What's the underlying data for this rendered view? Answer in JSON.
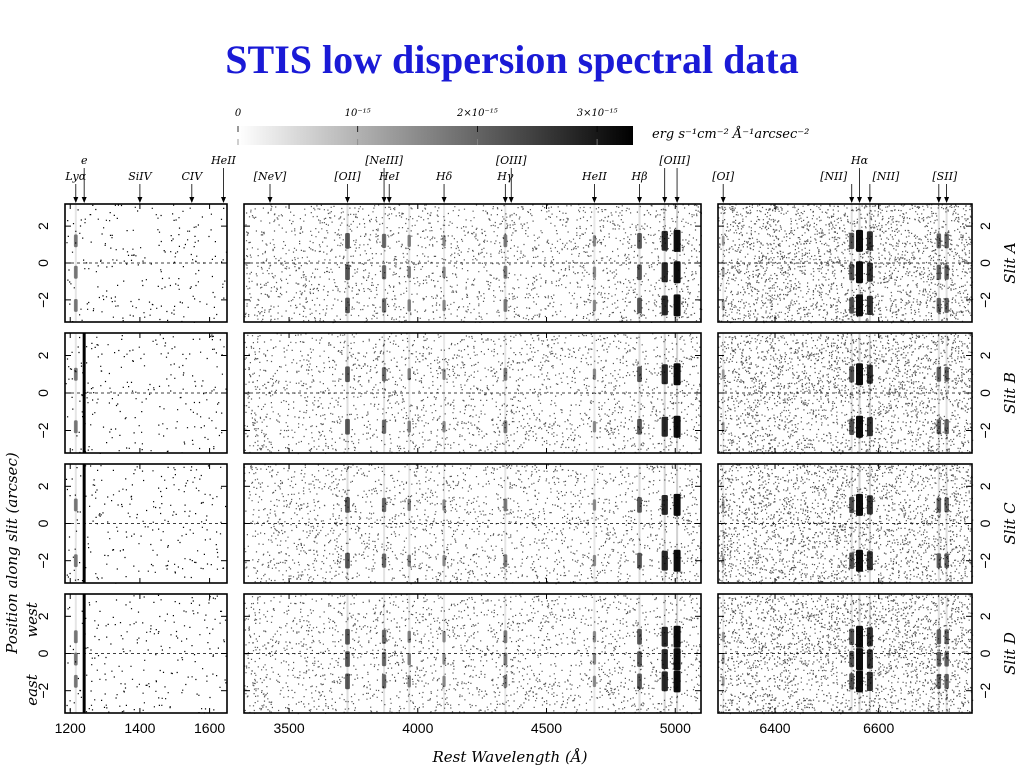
{
  "title": "STIS low dispersion spectral data",
  "chart_data": {
    "type": "heatmap",
    "title": "",
    "xlabel": "Rest Wavelength (Å)",
    "ylabel": "Position along slit (arcsec)",
    "orientation_labels": {
      "top": "west",
      "bottom": "east"
    },
    "colorbar": {
      "unit": "erg s⁻¹cm⁻² Å⁻¹arcsec⁻²",
      "ticks": [
        "0",
        "10⁻¹⁵",
        "2×10⁻¹⁵",
        "3×10⁻¹⁵"
      ],
      "tick_values": [
        0,
        1e-15,
        2e-15,
        3e-15
      ],
      "range": [
        0,
        3.3e-15
      ]
    },
    "ylim": [
      -3.2,
      3.2
    ],
    "y_ticks": [
      -2,
      0,
      2
    ],
    "slits": [
      "Slit A",
      "Slit B",
      "Slit C",
      "Slit D"
    ],
    "panels": [
      {
        "xlim": [
          1185,
          1650
        ],
        "x_ticks": [
          1200,
          1400,
          1600
        ]
      },
      {
        "xlim": [
          3325,
          5100
        ],
        "x_ticks": [
          3500,
          4000,
          4500,
          5000
        ]
      },
      {
        "xlim": [
          6290,
          6780
        ],
        "x_ticks": [
          6400,
          6600
        ]
      }
    ],
    "line_labels": [
      {
        "label": "Lyα",
        "wavelength": 1216,
        "panel": 0
      },
      {
        "label": "e",
        "wavelength": 1240,
        "panel": 0
      },
      {
        "label": "SiIV",
        "wavelength": 1400,
        "panel": 0
      },
      {
        "label": "CIV",
        "wavelength": 1549,
        "panel": 0
      },
      {
        "label": "HeII",
        "wavelength": 1640,
        "panel": 0
      },
      {
        "label": "[NeV]",
        "wavelength": 3426,
        "panel": 1
      },
      {
        "label": "[OII]",
        "wavelength": 3727,
        "panel": 1
      },
      {
        "label": "[NeIII]",
        "wavelength": 3869,
        "panel": 1
      },
      {
        "label": "HeI",
        "wavelength": 3889,
        "panel": 1
      },
      {
        "label": "Hδ",
        "wavelength": 4102,
        "panel": 1
      },
      {
        "label": "Hγ",
        "wavelength": 4340,
        "panel": 1
      },
      {
        "label": "[OIII]",
        "wavelength": 4363,
        "panel": 1
      },
      {
        "label": "HeII",
        "wavelength": 4686,
        "panel": 1
      },
      {
        "label": "Hβ",
        "wavelength": 4861,
        "panel": 1
      },
      {
        "label": "[OIII]",
        "wavelength": 4959,
        "panel": 1
      },
      {
        "label": "[OIII]",
        "wavelength": 5007,
        "panel": 1
      },
      {
        "label": "[OI]",
        "wavelength": 6300,
        "panel": 2
      },
      {
        "label": "[NII]",
        "wavelength": 6548,
        "panel": 2
      },
      {
        "label": "Hα",
        "wavelength": 6563,
        "panel": 2
      },
      {
        "label": "[NII]",
        "wavelength": 6583,
        "panel": 2
      },
      {
        "label": "[SII]",
        "wavelength": 6716,
        "panel": 2
      },
      {
        "label": "[SII]",
        "wavelength": 6731,
        "panel": 2
      }
    ],
    "emission_lines": [
      {
        "wavelength": 1216,
        "panel": 0,
        "strength": 0.35
      },
      {
        "wavelength": 1240,
        "panel": 0,
        "strength": 0.85
      },
      {
        "wavelength": 3727,
        "panel": 1,
        "strength": 0.55
      },
      {
        "wavelength": 3869,
        "panel": 1,
        "strength": 0.45
      },
      {
        "wavelength": 3967,
        "panel": 1,
        "strength": 0.3
      },
      {
        "wavelength": 4102,
        "panel": 1,
        "strength": 0.25
      },
      {
        "wavelength": 4340,
        "panel": 1,
        "strength": 0.35
      },
      {
        "wavelength": 4686,
        "panel": 1,
        "strength": 0.25
      },
      {
        "wavelength": 4861,
        "panel": 1,
        "strength": 0.55
      },
      {
        "wavelength": 4959,
        "panel": 1,
        "strength": 0.85
      },
      {
        "wavelength": 5007,
        "panel": 1,
        "strength": 1.0
      },
      {
        "wavelength": 6300,
        "panel": 2,
        "strength": 0.15
      },
      {
        "wavelength": 6548,
        "panel": 2,
        "strength": 0.6
      },
      {
        "wavelength": 6563,
        "panel": 2,
        "strength": 1.0
      },
      {
        "wavelength": 6583,
        "panel": 2,
        "strength": 0.8
      },
      {
        "wavelength": 6716,
        "panel": 2,
        "strength": 0.5
      },
      {
        "wavelength": 6731,
        "panel": 2,
        "strength": 0.5
      }
    ],
    "emission_knots_arcsec": {
      "Slit A": [
        -2.3,
        -0.5,
        1.2
      ],
      "Slit B": [
        1.0,
        -1.8
      ],
      "Slit C": [
        1.0,
        -2.0
      ],
      "Slit D": [
        0.9,
        -0.3,
        -1.5
      ]
    }
  }
}
